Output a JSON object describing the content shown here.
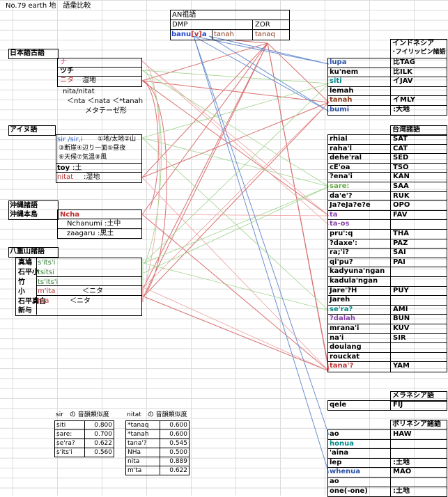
{
  "title": "No.79 earth 地　語彙比較",
  "colors": {
    "red": "#cc3333",
    "green": "#66bb44",
    "blue": "#3366cc",
    "pink": "#e04090",
    "purple": "#8844aa",
    "teal": "#008888",
    "brown": "#8b3a1a",
    "darkgreen": "#2e7d32"
  },
  "an": {
    "heading": "AN祖語",
    "dmp": "DMP",
    "zor": "ZOR",
    "banu_a": "banu",
    "banu_b": "[v]",
    "banu_c": "a",
    "tanah": "tanah",
    "tanaq": "tanaq"
  },
  "japanese": {
    "heading": "日本語古語",
    "rows": [
      "ナ",
      "ツチ",
      "ニタ",
      "湿地"
    ],
    "note1": "nita/nitat",
    "note2": "＜nta ＜nata ＜*tanah",
    "note3": "メタテーゼ形"
  },
  "ainu": {
    "heading": "アイヌ語",
    "sir": "sir /sir,i",
    "sir_gloss1": "①地/太地②山",
    "sir_gloss2": "③断崖④辺り一面⑤昼夜",
    "sir_gloss3": "⑥天候⑦気温⑧風",
    "toy": "toy",
    "toy_gloss": ":土",
    "nitat": "nitat",
    "nitat_gloss": ":湿地"
  },
  "okinawa": {
    "heading": "沖縄諸語",
    "sub": "沖縄本島",
    "ncha": "Ncha",
    "nchanumi": "Nchanumi",
    "nchanumi_gloss": ":土中",
    "zaagaru": "zaagaru",
    "zaagaru_gloss": ":黒土"
  },
  "yaeyama": {
    "heading": "八重山諸語",
    "places": [
      "真鳩",
      "石平小",
      "竹",
      "小",
      "石平真白",
      "新与"
    ],
    "words": [
      "s'its'i",
      "tsitsi",
      "ts'its'i",
      "m'ita",
      "nta"
    ],
    "note_mita": "＜ニタ",
    "note_nta": "＜ニタ"
  },
  "indonesia": {
    "heading1": "インドネシア",
    "heading2": "･フイリッピン諸語",
    "rows": [
      {
        "w": "lupa",
        "l": "比TAG"
      },
      {
        "w": "ku'nem",
        "l": "比ILK"
      },
      {
        "w": "siti",
        "l": "イJAV"
      },
      {
        "w": "lemah",
        "l": ""
      },
      {
        "w": "tanah",
        "l": "イMLY"
      },
      {
        "w": "bumi",
        "l": ":大地"
      }
    ]
  },
  "taiwan": {
    "heading": "台湾諸語",
    "rows": [
      {
        "w": "rhial",
        "l": "SAT"
      },
      {
        "w": "raha'l",
        "l": "CAT"
      },
      {
        "w": "dehe'ral",
        "l": "SED"
      },
      {
        "w": "cE'oa",
        "l": "TSO"
      },
      {
        "w": "?ena'i",
        "l": "KAN"
      },
      {
        "w": "sare:",
        "l": "SAA"
      },
      {
        "w": "da'e'?",
        "l": "RUK"
      },
      {
        "w": "Ja?eJa?e?e",
        "l": "OPO"
      },
      {
        "w": "ta",
        "l": "FAV"
      },
      {
        "w": "ta-os",
        "l": ""
      },
      {
        "w": "pru':q",
        "l": "THA"
      },
      {
        "w": "?daxe':",
        "l": "PAZ"
      },
      {
        "w": "ra;'i?",
        "l": "SAI"
      },
      {
        "w": "qi'pu?",
        "l": "PAI"
      },
      {
        "w": "kadyuna'ngan",
        "l": ""
      },
      {
        "w": "kadula'ngan",
        "l": ""
      },
      {
        "w": "Jare'?H",
        "l": "PUY"
      },
      {
        "w": "Jareh",
        "l": ""
      },
      {
        "w": "se'ra?",
        "l": "AMI"
      },
      {
        "w": "?dalah",
        "l": "BUN"
      },
      {
        "w": "mrana'i",
        "l": "KUV"
      },
      {
        "w": "na'i",
        "l": "SIR"
      },
      {
        "w": "doulang",
        "l": ""
      },
      {
        "w": "rouckat",
        "l": ""
      },
      {
        "w": "tana'?",
        "l": "YAM"
      }
    ]
  },
  "melanesia": {
    "heading": "メラネシア語",
    "w": "qele",
    "l": "FIJ"
  },
  "polynesia": {
    "heading": "ポリネシア諸語",
    "rows": [
      {
        "w": "ao",
        "l": "HAW"
      },
      {
        "w": "honua",
        "l": ""
      },
      {
        "w": "'aina",
        "l": ""
      },
      {
        "w": "lep",
        "l": ":土地"
      },
      {
        "w": "whenua",
        "l": "MAO"
      },
      {
        "w": "ao",
        "l": ""
      },
      {
        "w": "one(-one)",
        "l": ":土地"
      }
    ]
  },
  "sim_sir": {
    "header": "sir　の 音韻類似度",
    "rows": [
      [
        "siti",
        "0.800"
      ],
      [
        "sare:",
        "0.700"
      ],
      [
        "se'ra?",
        "0.622"
      ],
      [
        "s'its'i",
        "0.560"
      ]
    ]
  },
  "sim_nitat": {
    "header": "nitat　の 音韻類似度",
    "rows": [
      [
        "*tanaq",
        "0.600"
      ],
      [
        "*tanah",
        "0.600"
      ],
      [
        "tana'?",
        "0.545"
      ],
      [
        "NHa",
        "0.500"
      ],
      [
        "nita",
        "0.889"
      ],
      [
        "m'ta",
        "0.622"
      ]
    ]
  }
}
